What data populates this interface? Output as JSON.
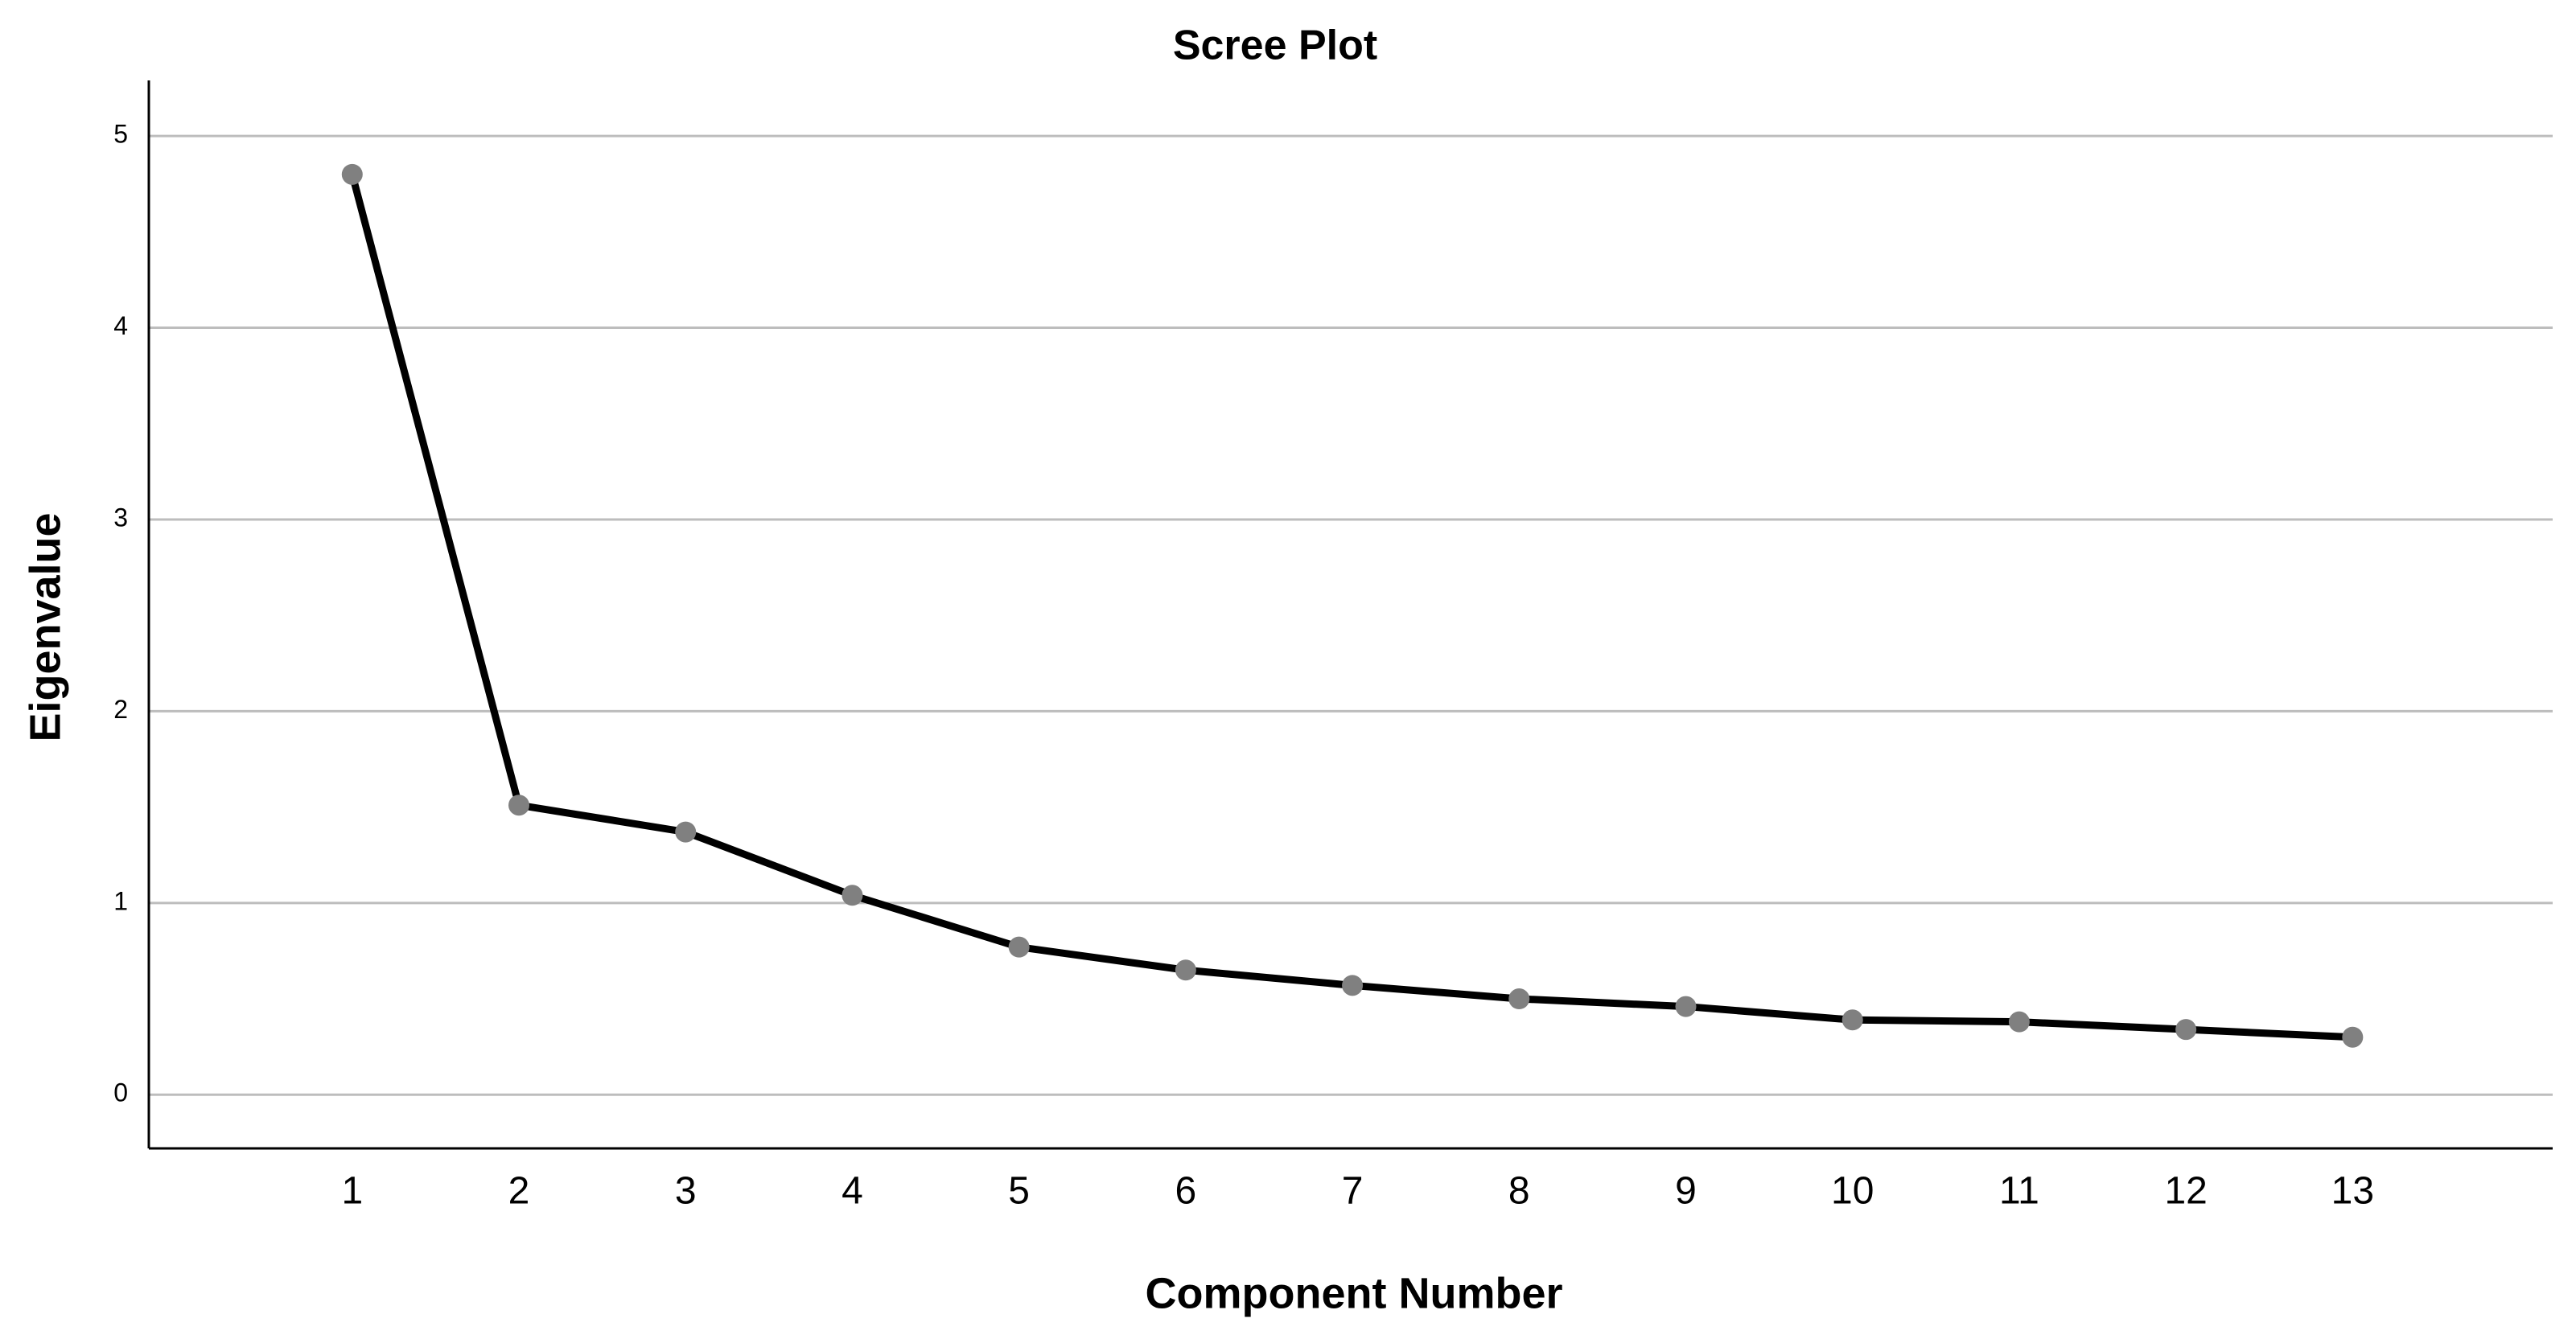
{
  "chart_data": {
    "type": "line",
    "title": "Scree Plot",
    "x_label": "Component Number",
    "y_label": "Eigenvalue",
    "x": [
      1,
      2,
      3,
      4,
      5,
      6,
      7,
      8,
      9,
      10,
      11,
      12,
      13
    ],
    "series": [
      {
        "name": "Eigenvalue",
        "color": "#000000",
        "marker_color": "#808080",
        "values": [
          4.8,
          1.51,
          1.37,
          1.04,
          0.77,
          0.65,
          0.57,
          0.5,
          0.46,
          0.39,
          0.38,
          0.34,
          0.3
        ]
      }
    ],
    "xlim": [
      -0.22,
      14.2
    ],
    "xticks": [
      1,
      2,
      3,
      4,
      5,
      6,
      7,
      8,
      9,
      10,
      11,
      12,
      13
    ],
    "ylim": [
      -0.28,
      5.29
    ],
    "yticks": [
      0,
      1,
      2,
      3,
      4,
      5
    ],
    "grid": true
  }
}
